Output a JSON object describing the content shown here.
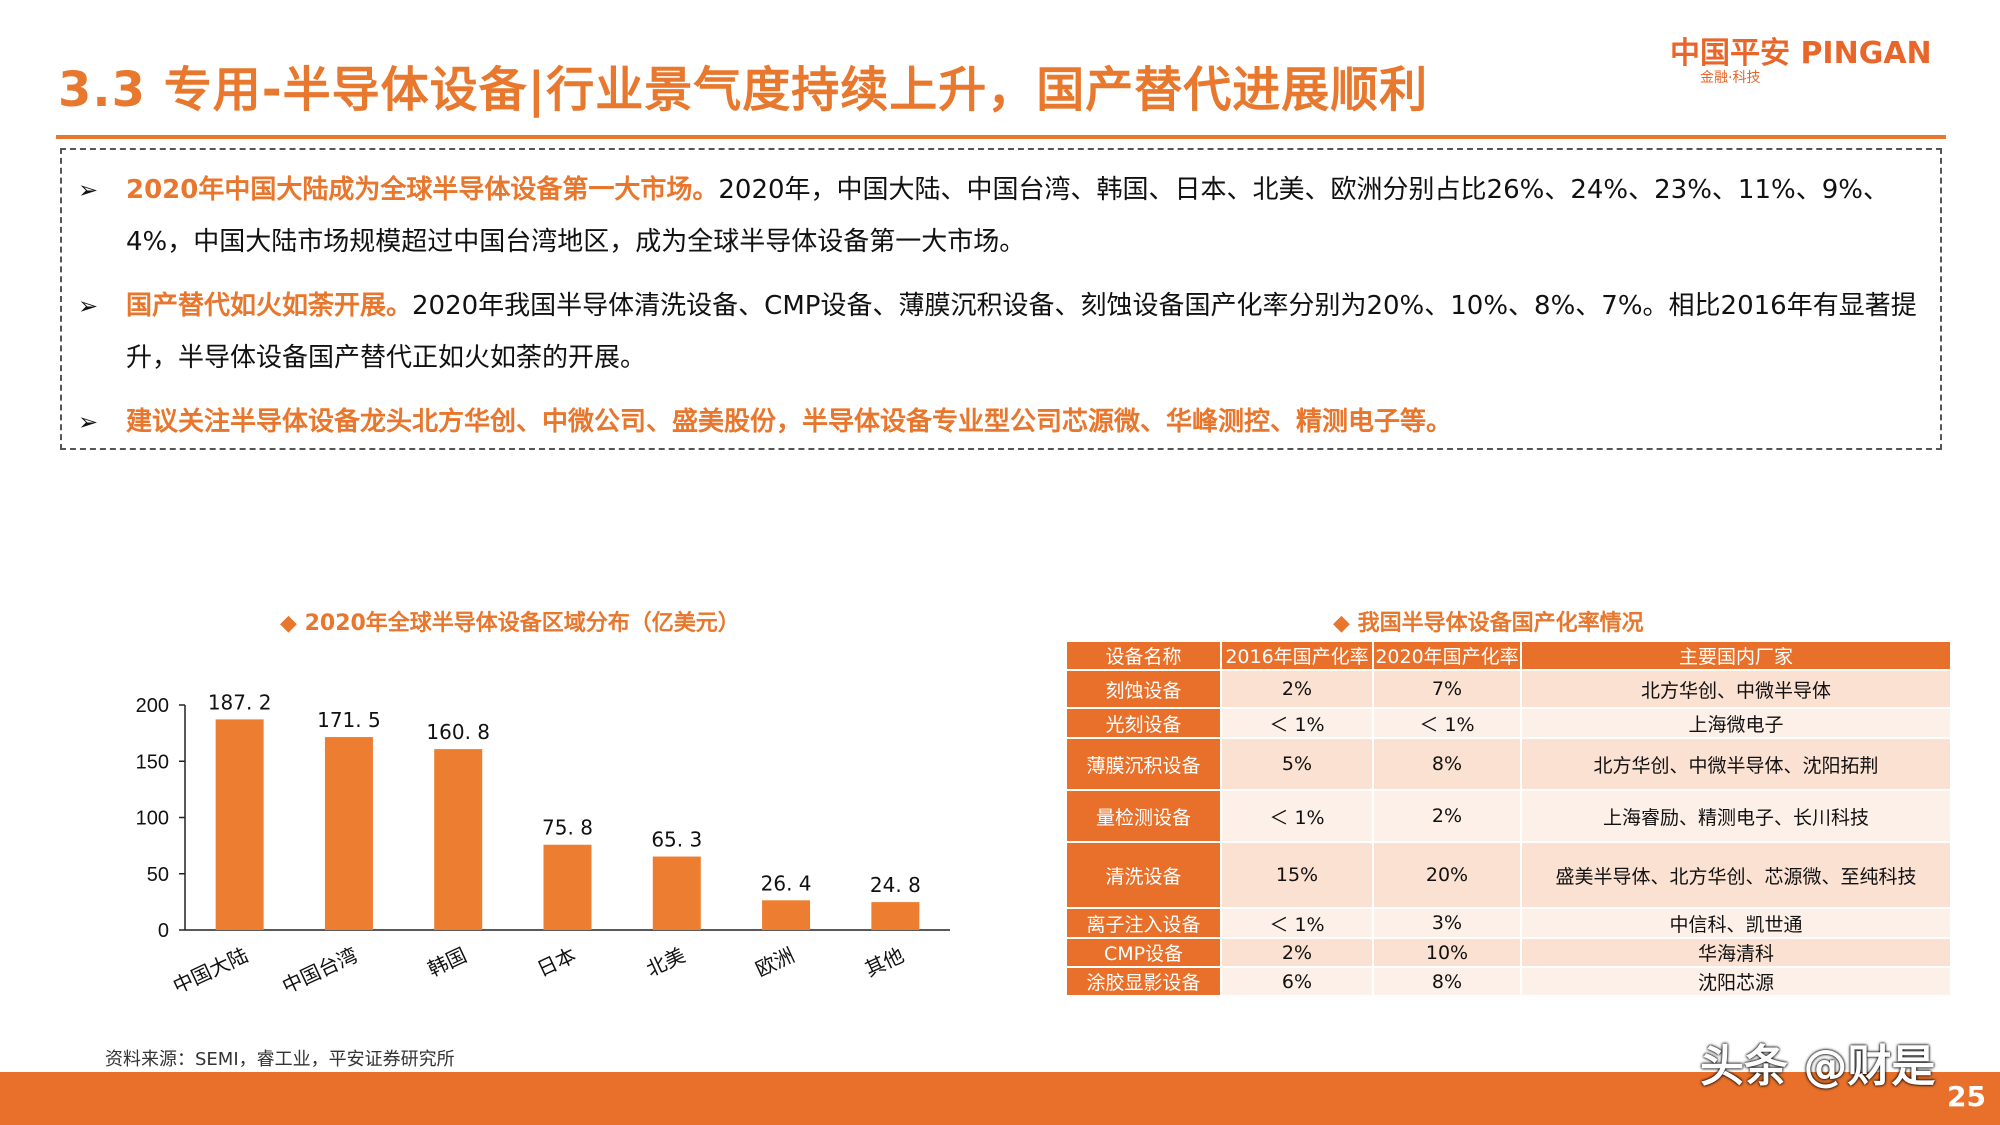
{
  "title": "3.3 专用-半导体设备|行业景气度持续上升，国产替代进展顺利",
  "logo": {
    "text": "中国平安 PINGAN",
    "sub": "金融·科技"
  },
  "bullets": [
    {
      "highlight": "2020年中国大陆成为全球半导体设备第一大市场。",
      "text": "2020年，中国大陆、中国台湾、韩国、日本、北美、欧洲分别占比26%、24%、23%、11%、9%、4%，中国大陆市场规模超过中国台湾地区，成为全球半导体设备第一大市场。"
    },
    {
      "highlight": "国产替代如火如荼开展。",
      "text": "2020年我国半导体清洗设备、CMP设备、薄膜沉积设备、刻蚀设备国产化率分别为20%、10%、8%、7%。相比2016年有显著提升，半导体设备国产替代正如火如荼的开展。"
    },
    {
      "highlight": "建议关注半导体设备龙头北方华创、中微公司、盛美股份，半导体设备专业型公司芯源微、华峰测控、精测电子等。",
      "text": ""
    }
  ],
  "chart_title": "◆ 2020年全球半导体设备区域分布（亿美元）",
  "chart_data": {
    "type": "bar",
    "title": "2020年全球半导体设备区域分布（亿美元）",
    "categories": [
      "中国大陆",
      "中国台湾",
      "韩国",
      "日本",
      "北美",
      "欧洲",
      "其他"
    ],
    "values": [
      187.2,
      171.5,
      160.8,
      75.8,
      65.3,
      26.4,
      24.8
    ],
    "value_labels": [
      "187. 2",
      "171. 5",
      "160. 8",
      "75. 8",
      "65. 3",
      "26. 4",
      "24. 8"
    ],
    "yticks": [
      "200",
      "150",
      "100",
      "50",
      "0"
    ],
    "ylim": [
      0,
      200
    ],
    "bar_color": "#ed7d31",
    "grid": false
  },
  "table_title": "◆ 我国半导体设备国产化率情况",
  "table": {
    "headers": [
      "设备名称",
      "2016年国产化率",
      "2020年国产化率",
      "主要国内厂家"
    ],
    "rows": [
      [
        "刻蚀设备",
        "2%",
        "7%",
        "北方华创、中微半导体"
      ],
      [
        "光刻设备",
        "＜ 1%",
        "＜ 1%",
        "上海微电子"
      ],
      [
        "薄膜沉积设备",
        "5%",
        "8%",
        "北方华创、中微半导体、沈阳拓荆"
      ],
      [
        "量检测设备",
        "＜ 1%",
        "2%",
        "上海睿励、精测电子、长川科技"
      ],
      [
        "清洗设备",
        "15%",
        "20%",
        "盛美半导体、北方华创、芯源微、至纯科技"
      ],
      [
        "离子注入设备",
        "＜ 1%",
        "3%",
        "中信科、凯世通"
      ],
      [
        "CMP设备",
        "2%",
        "10%",
        "华海清科"
      ],
      [
        "涂胶显影设备",
        "6%",
        "8%",
        "沈阳芯源"
      ]
    ]
  },
  "source": "资料来源：SEMI，睿工业，平安证券研究所",
  "watermark": "头条 @财是",
  "page_number": "25",
  "colors": {
    "accent": "#e8782d",
    "bar": "#ed7d31",
    "table_header": "#e8702a"
  }
}
